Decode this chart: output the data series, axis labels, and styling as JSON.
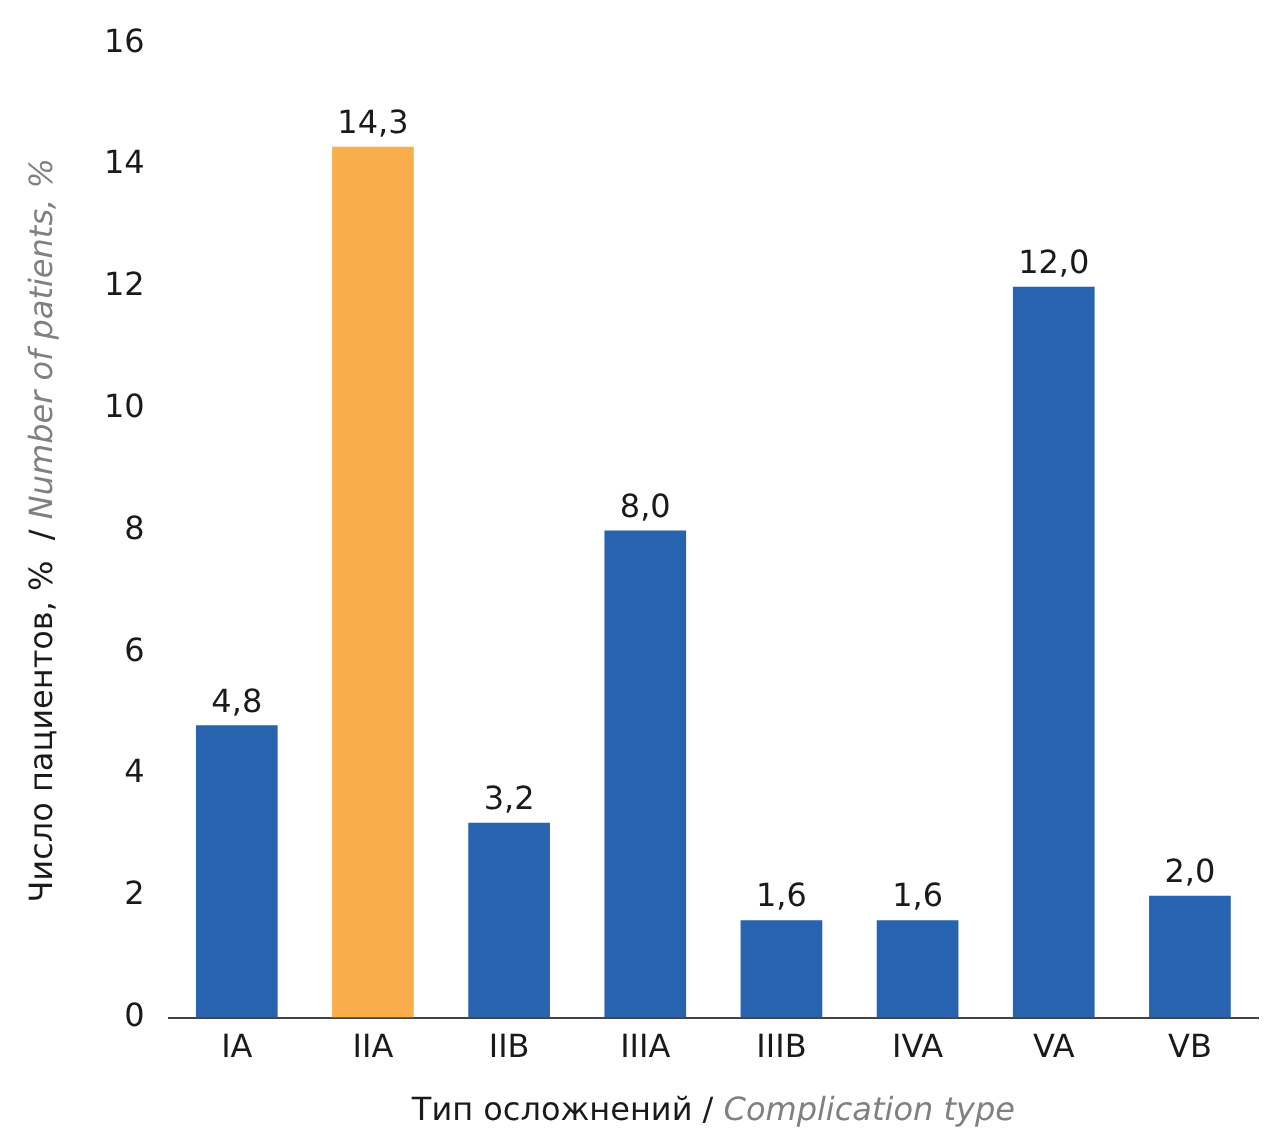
{
  "chart_data": {
    "type": "bar",
    "xlabel": "Тип осложнений / Complication type",
    "ylabel": "Число пациентов, %  / Number of patients, %",
    "categories": [
      "IA",
      "IIA",
      "IIB",
      "IIIA",
      "IIIB",
      "IVA",
      "VA",
      "VB"
    ],
    "values": [
      4.8,
      14.3,
      3.2,
      8.0,
      1.6,
      1.6,
      12.0,
      2.0
    ],
    "value_labels": [
      "4,8",
      "14,3",
      "3,2",
      "8,0",
      "1,6",
      "1,6",
      "12,0",
      "2,0"
    ],
    "colors": [
      "#2763ae",
      "#f9ad4b",
      "#2763ae",
      "#2763ae",
      "#2763ae",
      "#2763ae",
      "#2763ae",
      "#2763ae"
    ],
    "ylim": [
      0,
      16
    ],
    "yticks": [
      0,
      2,
      4,
      6,
      8,
      10,
      12,
      14,
      16
    ],
    "grid": false,
    "legend": false
  }
}
